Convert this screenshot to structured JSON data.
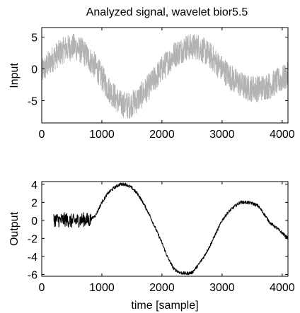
{
  "chart_data": [
    {
      "type": "line",
      "title": "Analyzed signal, wavelet bior5.5",
      "xlabel": "",
      "ylabel": "Input",
      "xlim": [
        0,
        4096
      ],
      "ylim": [
        -8.5,
        6.5
      ],
      "xticks": [
        0,
        1000,
        2000,
        3000,
        4000
      ],
      "yticks": [
        5,
        0,
        -5
      ],
      "grid": false,
      "line_color": "#b3b3b3",
      "series": [
        {
          "description_of_values": "noisy sinusoid with +/- ~2 noise",
          "x": [
            0,
            200,
            400,
            550,
            700,
            900,
            1100,
            1300,
            1450,
            1600,
            1800,
            2000,
            2200,
            2400,
            2600,
            2800,
            3000,
            3200,
            3400,
            3600,
            3800,
            4000,
            4096
          ],
          "y": [
            -0.5,
            1.8,
            3.2,
            3.5,
            2.6,
            0.3,
            -3.0,
            -5.4,
            -5.8,
            -4.8,
            -2.6,
            0.0,
            2.2,
            3.4,
            3.5,
            2.1,
            0.0,
            -1.8,
            -3.0,
            -3.1,
            -2.6,
            -1.6,
            -1.0
          ]
        }
      ]
    },
    {
      "type": "line",
      "title": "",
      "xlabel": "time [sample]",
      "ylabel": "Output",
      "xlim": [
        0,
        4096
      ],
      "ylim": [
        -6.2,
        4.3
      ],
      "xticks": [
        0,
        1000,
        2000,
        3000,
        4000
      ],
      "yticks": [
        4,
        2,
        0,
        -2,
        -4,
        -6
      ],
      "grid": false,
      "line_color": "#000000",
      "series": [
        {
          "x": [
            200,
            300,
            400,
            500,
            600,
            700,
            800,
            900,
            1000,
            1100,
            1200,
            1300,
            1400,
            1500,
            1600,
            1700,
            1800,
            1900,
            2000,
            2100,
            2200,
            2300,
            2400,
            2500,
            2600,
            2700,
            2800,
            2900,
            3000,
            3100,
            3200,
            3300,
            3400,
            3500,
            3600,
            3700,
            3800,
            3900,
            4000,
            4096
          ],
          "y": [
            0.1,
            0.0,
            0.1,
            -0.1,
            0.0,
            0.1,
            0.0,
            0.6,
            2.0,
            3.0,
            3.6,
            4.0,
            4.0,
            3.6,
            2.9,
            1.8,
            0.5,
            -1.0,
            -2.5,
            -4.2,
            -5.4,
            -5.8,
            -5.9,
            -5.8,
            -5.0,
            -4.0,
            -2.8,
            -1.4,
            0.0,
            0.9,
            1.5,
            2.0,
            2.0,
            1.9,
            1.6,
            0.7,
            -0.3,
            -0.8,
            -1.4,
            -2.0
          ]
        }
      ]
    }
  ]
}
